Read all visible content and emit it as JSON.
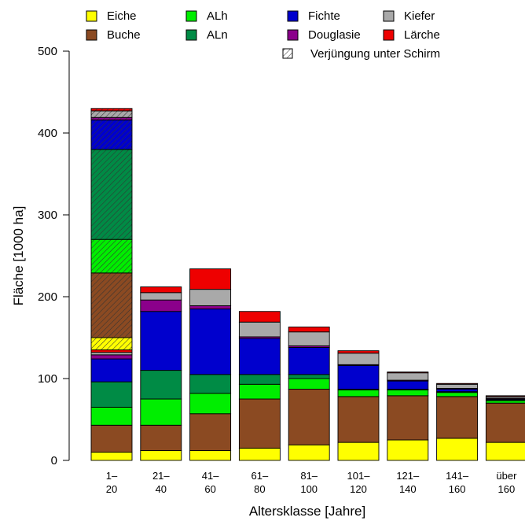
{
  "chart_data": {
    "type": "bar",
    "stacked": true,
    "title": "",
    "xlabel": "Altersklasse [Jahre]",
    "ylabel": "Fläche [1000 ha]",
    "ylim": [
      0,
      500
    ],
    "yticks": [
      "0",
      "100",
      "200",
      "300",
      "400",
      "500"
    ],
    "grid": false,
    "legend_position": "top",
    "categories": [
      [
        "1–",
        "20"
      ],
      [
        "21–",
        "40"
      ],
      [
        "41–",
        "60"
      ],
      [
        "61–",
        "80"
      ],
      [
        "81–",
        "100"
      ],
      [
        "101–",
        "120"
      ],
      [
        "121–",
        "140"
      ],
      [
        "141–",
        "160"
      ],
      [
        "über",
        "160"
      ]
    ],
    "legend": [
      {
        "label": "Eiche",
        "color": "#ffff00"
      },
      {
        "label": "Buche",
        "color": "#8b4a22"
      },
      {
        "label": "ALh",
        "color": "#00ee00"
      },
      {
        "label": "ALn",
        "color": "#008b45"
      },
      {
        "label": "Fichte",
        "color": "#0000cd"
      },
      {
        "label": "Douglasie",
        "color": "#8b008b"
      },
      {
        "label": "Kiefer",
        "color": "#a9a9a9"
      },
      {
        "label": "Lärche",
        "color": "#ee0000"
      },
      {
        "label": "Verjüngung unter Schirm",
        "color": "#ffffff",
        "hatched": true
      }
    ],
    "series": [
      {
        "name": "Eiche",
        "color": "#ffff00",
        "values": [
          10,
          12,
          12,
          15,
          19,
          22,
          25,
          27,
          22
        ]
      },
      {
        "name": "Buche",
        "color": "#8b4a22",
        "values": [
          33,
          31,
          45,
          60,
          68,
          56,
          54,
          51,
          48
        ]
      },
      {
        "name": "ALh",
        "color": "#00ee00",
        "values": [
          22,
          32,
          25,
          18,
          13,
          8,
          7,
          5,
          3
        ]
      },
      {
        "name": "ALn",
        "color": "#008b45",
        "values": [
          31,
          35,
          23,
          12,
          5,
          1,
          1,
          1,
          1
        ]
      },
      {
        "name": "Fichte",
        "color": "#0000cd",
        "values": [
          28,
          72,
          80,
          44,
          33,
          29,
          10,
          3,
          1
        ]
      },
      {
        "name": "Douglasie",
        "color": "#8b008b",
        "values": [
          5,
          14,
          4,
          2,
          2,
          1,
          1,
          1,
          1
        ]
      },
      {
        "name": "Kiefer",
        "color": "#a9a9a9",
        "values": [
          3,
          9,
          20,
          18,
          17,
          14,
          9,
          5,
          2
        ]
      },
      {
        "name": "Lärche",
        "color": "#ee0000",
        "values": [
          3,
          7,
          25,
          13,
          6,
          3,
          1,
          1,
          1
        ]
      }
    ],
    "regeneration_under_canopy": {
      "category": "1–20",
      "series": [
        {
          "name": "Eiche",
          "value": 15
        },
        {
          "name": "Buche",
          "value": 79
        },
        {
          "name": "ALh",
          "value": 41
        },
        {
          "name": "ALn",
          "value": 110
        },
        {
          "name": "Fichte",
          "value": 36
        },
        {
          "name": "Douglasie",
          "value": 3
        },
        {
          "name": "Kiefer",
          "value": 8
        },
        {
          "name": "Lärche",
          "value": 3
        }
      ]
    }
  }
}
